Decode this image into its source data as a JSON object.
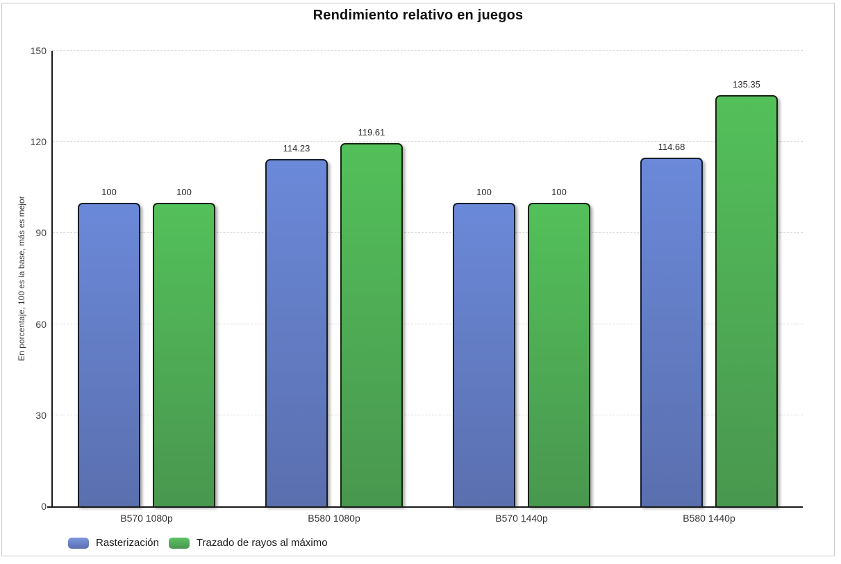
{
  "frame": {
    "background_color": "#ffffff",
    "border_color": "#cbcbcb"
  },
  "chart_data": {
    "type": "bar",
    "title": "Rendimiento relativo en juegos",
    "ylabel": "En porcentaje, 100 es la base, más es mejor",
    "xlabel": "",
    "categories": [
      "B570 1080p",
      "B580 1080p",
      "B570 1440p",
      "B580 1440p"
    ],
    "series": [
      {
        "name": "Rasterización",
        "values": [
          100,
          114.23,
          100,
          114.68
        ],
        "color_top": "#6b89d9",
        "color_bottom": "#5a6fae",
        "border_color": "#151c2b",
        "legend_color": "#7d97de"
      },
      {
        "name": "Trazado de rayos al máximo",
        "values": [
          100,
          119.61,
          100,
          135.35
        ],
        "color_top": "#53c05a",
        "color_bottom": "#49974f",
        "border_color": "#15240f",
        "legend_color": "#5dc263"
      }
    ],
    "ylim": [
      0,
      150
    ],
    "yticks": [
      0,
      30,
      60,
      90,
      120,
      150
    ],
    "grid": "horizontal-dashed",
    "legend_position": "bottom-left",
    "value_labels_shown": [
      "100",
      "114.23",
      "119.61",
      "100",
      "100",
      "114.68",
      "135.35"
    ]
  }
}
